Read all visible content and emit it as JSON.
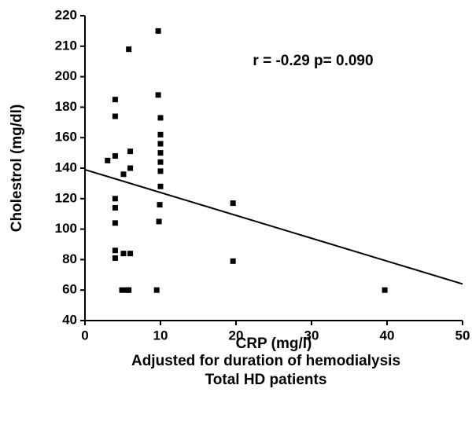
{
  "chart_data": {
    "type": "scatter",
    "x": [
      3,
      4,
      4,
      4,
      4,
      4,
      4,
      4,
      4,
      5.1,
      5.1,
      4.9,
      5.6,
      5.8,
      6,
      6,
      6,
      5.8,
      9.7,
      9.7,
      10,
      10,
      10,
      10,
      10,
      10,
      10,
      9.9,
      9.8,
      9.5,
      19.6,
      19.6,
      39.7
    ],
    "values": [
      145,
      185,
      174,
      148,
      120,
      114,
      104,
      86,
      81,
      136,
      84,
      60,
      60,
      209,
      151,
      140,
      84,
      60,
      215,
      188,
      173,
      162,
      156,
      150,
      144,
      138,
      128,
      116,
      105,
      60,
      117,
      79,
      60
    ],
    "color": "#000000",
    "fit": {
      "x": [
        0,
        50
      ],
      "y": [
        139,
        64
      ]
    },
    "xlim": [
      0,
      50
    ],
    "xticks": [
      0,
      10,
      20,
      30,
      40,
      50
    ],
    "ylim": [
      40,
      220
    ],
    "yticks": [
      40,
      60,
      80,
      100,
      120,
      140,
      160,
      180,
      200,
      210,
      220
    ],
    "xlabel": "CRP (mg/l)",
    "ylabel": "Cholestrol (mg/dl)",
    "annotation": "r = -0.29  p= 0.090",
    "caption": [
      "Adjusted for duration of hemodialysis",
      "Total HD patients"
    ]
  }
}
